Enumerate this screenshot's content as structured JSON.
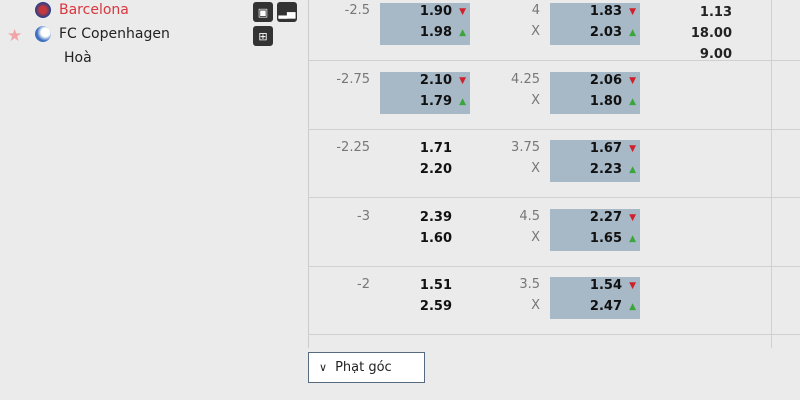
{
  "match": {
    "home": {
      "name": "Barcelona",
      "color": "#d9363e"
    },
    "away": {
      "name": "FC Copenhagen"
    },
    "draw_label": "Hoà",
    "icons": [
      "monitor-icon",
      "signal-bars-icon",
      "lineup-icon"
    ]
  },
  "rows": [
    {
      "hcap": "-2.5",
      "h1": "1.90",
      "h1d": "down",
      "h2": "1.98",
      "h2d": "up",
      "hhl": true,
      "ou": "4",
      "ouX": "X",
      "o1": "1.83",
      "o1d": "down",
      "o2": "2.03",
      "o2d": "up",
      "ohl": true,
      "x12": [
        "1.13",
        "18.00",
        "9.00"
      ]
    },
    {
      "hcap": "-2.75",
      "h1": "2.10",
      "h1d": "down",
      "h2": "1.79",
      "h2d": "up",
      "hhl": true,
      "ou": "4.25",
      "ouX": "X",
      "o1": "2.06",
      "o1d": "down",
      "o2": "1.80",
      "o2d": "up",
      "ohl": true
    },
    {
      "hcap": "-2.25",
      "h1": "1.71",
      "h2": "2.20",
      "hhl": false,
      "ou": "3.75",
      "ouX": "X",
      "o1": "1.67",
      "o1d": "down",
      "o2": "2.23",
      "o2d": "up",
      "ohl": true
    },
    {
      "hcap": "-3",
      "h1": "2.39",
      "h2": "1.60",
      "hhl": false,
      "ou": "4.5",
      "ouX": "X",
      "o1": "2.27",
      "o1d": "down",
      "o2": "1.65",
      "o2d": "up",
      "ohl": true
    },
    {
      "hcap": "-2",
      "h1": "1.51",
      "h2": "2.59",
      "hhl": false,
      "ou": "3.5",
      "ouX": "X",
      "o1": "1.54",
      "o1d": "down",
      "o2": "2.47",
      "o2d": "up",
      "ohl": true
    }
  ],
  "corner_button": {
    "label": "Phạt góc"
  }
}
